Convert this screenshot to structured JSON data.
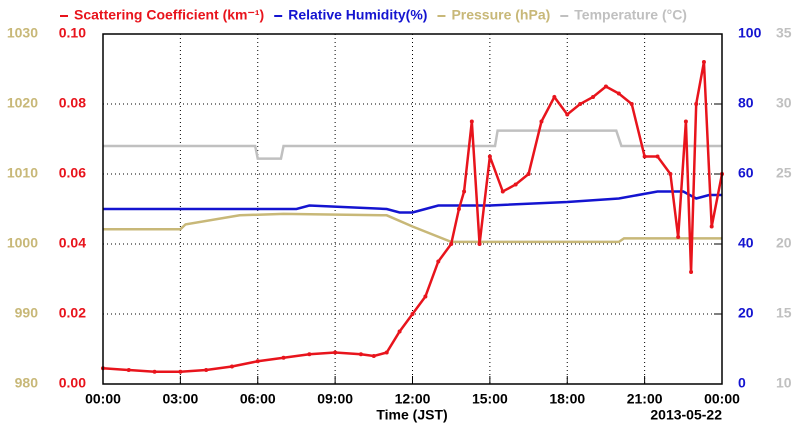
{
  "chart_data": {
    "type": "line",
    "xlabel": "Time (JST)",
    "annotation": "2013-05-22",
    "xlim": [
      0,
      24
    ],
    "xticks": [
      {
        "value": 0,
        "label": "00:00"
      },
      {
        "value": 3,
        "label": "03:00"
      },
      {
        "value": 6,
        "label": "06:00"
      },
      {
        "value": 9,
        "label": "09:00"
      },
      {
        "value": 12,
        "label": "12:00"
      },
      {
        "value": 15,
        "label": "15:00"
      },
      {
        "value": 18,
        "label": "18:00"
      },
      {
        "value": 21,
        "label": "21:00"
      },
      {
        "value": 24,
        "label": "00:00"
      }
    ],
    "ylim": [
      0,
      0.1
    ],
    "yticks": [
      {
        "value": 0,
        "label": "0.00"
      },
      {
        "value": 0.02,
        "label": "0.02"
      },
      {
        "value": 0.04,
        "label": "0.04"
      },
      {
        "value": 0.06,
        "label": "0.06"
      },
      {
        "value": 0.08,
        "label": "0.08"
      },
      {
        "value": 0.1,
        "label": "0.10"
      }
    ],
    "y2lim": [
      0,
      100
    ],
    "y2ticks": [
      0,
      20,
      40,
      60,
      80,
      100
    ],
    "y3lim": [
      980,
      1030
    ],
    "y3ticks": [
      980,
      990,
      1000,
      1010,
      1020,
      1030
    ],
    "y4lim": [
      10,
      35
    ],
    "y4ticks": [
      10,
      15,
      20,
      25,
      30,
      35
    ],
    "grid": true,
    "series": [
      {
        "name": "Scattering Coefficient (km⁻¹)",
        "color": "#e8141c",
        "axis": "y",
        "x": [
          0,
          1,
          2,
          3,
          4,
          5,
          6,
          7,
          8,
          9,
          10,
          10.5,
          11,
          11.5,
          12,
          12.5,
          13,
          13.5,
          13.8,
          14,
          14.3,
          14.6,
          15,
          15.5,
          16,
          16.5,
          17,
          17.5,
          18,
          18.5,
          19,
          19.5,
          20,
          20.5,
          21,
          21.5,
          22,
          22.3,
          22.6,
          22.8,
          23,
          23.3,
          23.6,
          24
        ],
        "values": [
          0.0045,
          0.004,
          0.0035,
          0.0035,
          0.004,
          0.005,
          0.0065,
          0.0075,
          0.0085,
          0.009,
          0.0085,
          0.008,
          0.009,
          0.015,
          0.02,
          0.025,
          0.035,
          0.04,
          0.05,
          0.055,
          0.075,
          0.04,
          0.065,
          0.055,
          0.057,
          0.06,
          0.075,
          0.082,
          0.077,
          0.08,
          0.082,
          0.085,
          0.083,
          0.08,
          0.065,
          0.065,
          0.06,
          0.042,
          0.075,
          0.032,
          0.08,
          0.092,
          0.045,
          0.06
        ]
      },
      {
        "name": "Relative Humidity(%)",
        "color": "#1414d0",
        "axis": "y2",
        "x": [
          0,
          7.5,
          8,
          11,
          11.5,
          12,
          12.5,
          13,
          15,
          18,
          20,
          21.5,
          22.5,
          23,
          23.5,
          24
        ],
        "values": [
          50,
          50,
          51,
          50,
          49,
          49,
          50,
          51,
          51,
          52,
          53,
          55,
          55,
          53,
          54,
          54
        ]
      },
      {
        "name": "Pressure (hPa)",
        "color": "#c8b878",
        "axis": "y3",
        "x": [
          0,
          3,
          3.2,
          5.3,
          7,
          11,
          12,
          13.5,
          20,
          20.2,
          24
        ],
        "values": [
          1002.1,
          1002.1,
          1002.8,
          1004.1,
          1004.3,
          1004.1,
          1002.5,
          1000.3,
          1000.3,
          1000.8,
          1000.8
        ]
      },
      {
        "name": "Temperature (°C)",
        "color": "#c0c0c0",
        "axis": "y4",
        "x": [
          0,
          5.9,
          6,
          6.9,
          7,
          15.2,
          15.3,
          19.9,
          20.1,
          21,
          24
        ],
        "values": [
          27,
          27,
          26.1,
          26.1,
          27,
          27,
          28.1,
          28.1,
          27,
          27,
          27
        ]
      }
    ]
  }
}
